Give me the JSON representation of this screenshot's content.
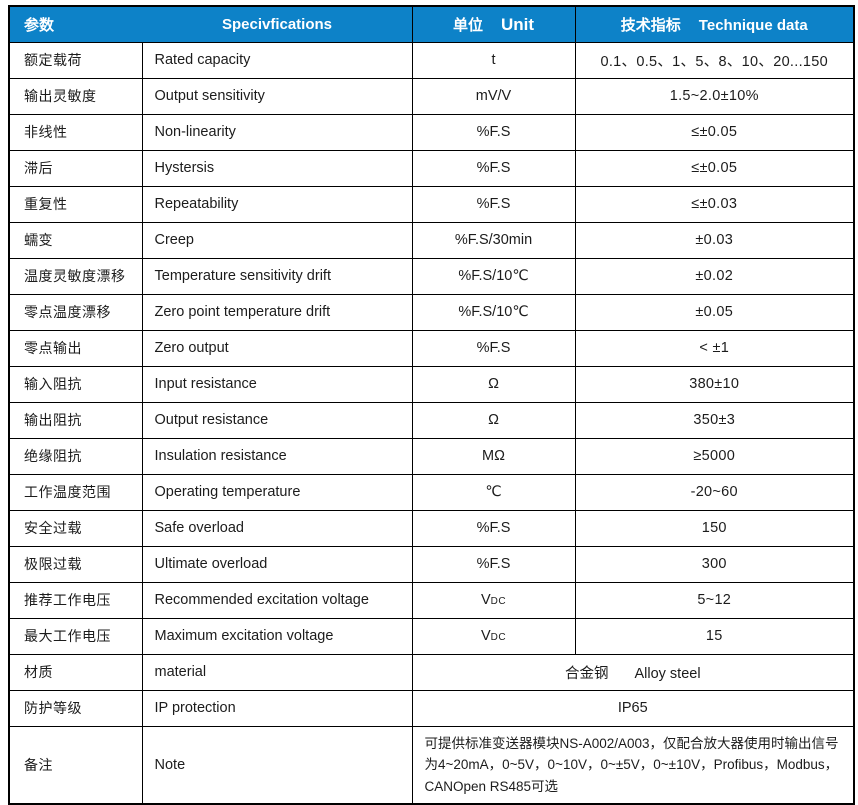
{
  "header": {
    "param_zh": "参数",
    "spec_en": "Specivfications",
    "unit_zh": "单位",
    "unit_en": "Unit",
    "tech_zh": "技术指标",
    "tech_en": "Technique data"
  },
  "rows": [
    {
      "zh": "额定载荷",
      "en": "Rated capacity",
      "unit": "t",
      "value": "0.1、0.5、1、5、8、10、20...150"
    },
    {
      "zh": "输出灵敏度",
      "en": "Output sensitivity",
      "unit": "mV/V",
      "value": "1.5~2.0±10%"
    },
    {
      "zh": "非线性",
      "en": "Non-linearity",
      "unit": "%F.S",
      "value": "≤±0.05"
    },
    {
      "zh": "滞后",
      "en": "Hystersis",
      "unit": "%F.S",
      "value": "≤±0.05"
    },
    {
      "zh": "重复性",
      "en": "Repeatability",
      "unit": "%F.S",
      "value": "≤±0.03"
    },
    {
      "zh": "蠕变",
      "en": "Creep",
      "unit": "%F.S/30min",
      "value": "±0.03"
    },
    {
      "zh": "温度灵敏度漂移",
      "en": "Temperature sensitivity drift",
      "unit": "%F.S/10℃",
      "value": "±0.02"
    },
    {
      "zh": "零点温度漂移",
      "en": "Zero point temperature drift",
      "unit": "%F.S/10℃",
      "value": "±0.05"
    },
    {
      "zh": "零点输出",
      "en": "Zero output",
      "unit": "%F.S",
      "value": "< ±1"
    },
    {
      "zh": "输入阻抗",
      "en": "Input resistance",
      "unit": "Ω",
      "value": "380±10"
    },
    {
      "zh": "输出阻抗",
      "en": "Output resistance",
      "unit": "Ω",
      "value": "350±3"
    },
    {
      "zh": "绝缘阻抗",
      "en": "Insulation resistance",
      "unit": "MΩ",
      "value": "≥5000"
    },
    {
      "zh": "工作温度范围",
      "en": "Operating temperature",
      "unit": "℃",
      "value": "-20~60"
    },
    {
      "zh": "安全过载",
      "en": "Safe overload",
      "unit": "%F.S",
      "value": "150"
    },
    {
      "zh": "极限过载",
      "en": "Ultimate overload",
      "unit": "%F.S",
      "value": "300"
    },
    {
      "zh": "推荐工作电压",
      "en": "Recommended excitation voltage",
      "unit": "V",
      "unit_sub": "DC",
      "value": "5~12"
    },
    {
      "zh": "最大工作电压",
      "en": "Maximum excitation voltage",
      "unit": "V",
      "unit_sub": "DC",
      "value": "15"
    }
  ],
  "merged_rows": [
    {
      "zh": "材质",
      "en": "material",
      "value_zh": "合金钢",
      "value_en": "Alloy steel"
    },
    {
      "zh": "防护等级",
      "en": "IP protection",
      "value": "IP65"
    },
    {
      "zh": "备注",
      "en": "Note",
      "note": true,
      "value": "可提供标准变送器模块NS-A002/A003，仅配合放大器使用时输出信号为4~20mA，0~5V，0~10V，0~±5V，0~±10V，Profibus，Modbus，CANOpen  RS485可选"
    }
  ],
  "colors": {
    "header_bg": "#0d82c8",
    "header_text": "#ffffff",
    "body_text": "#1c1c1c",
    "border": "#000000"
  }
}
